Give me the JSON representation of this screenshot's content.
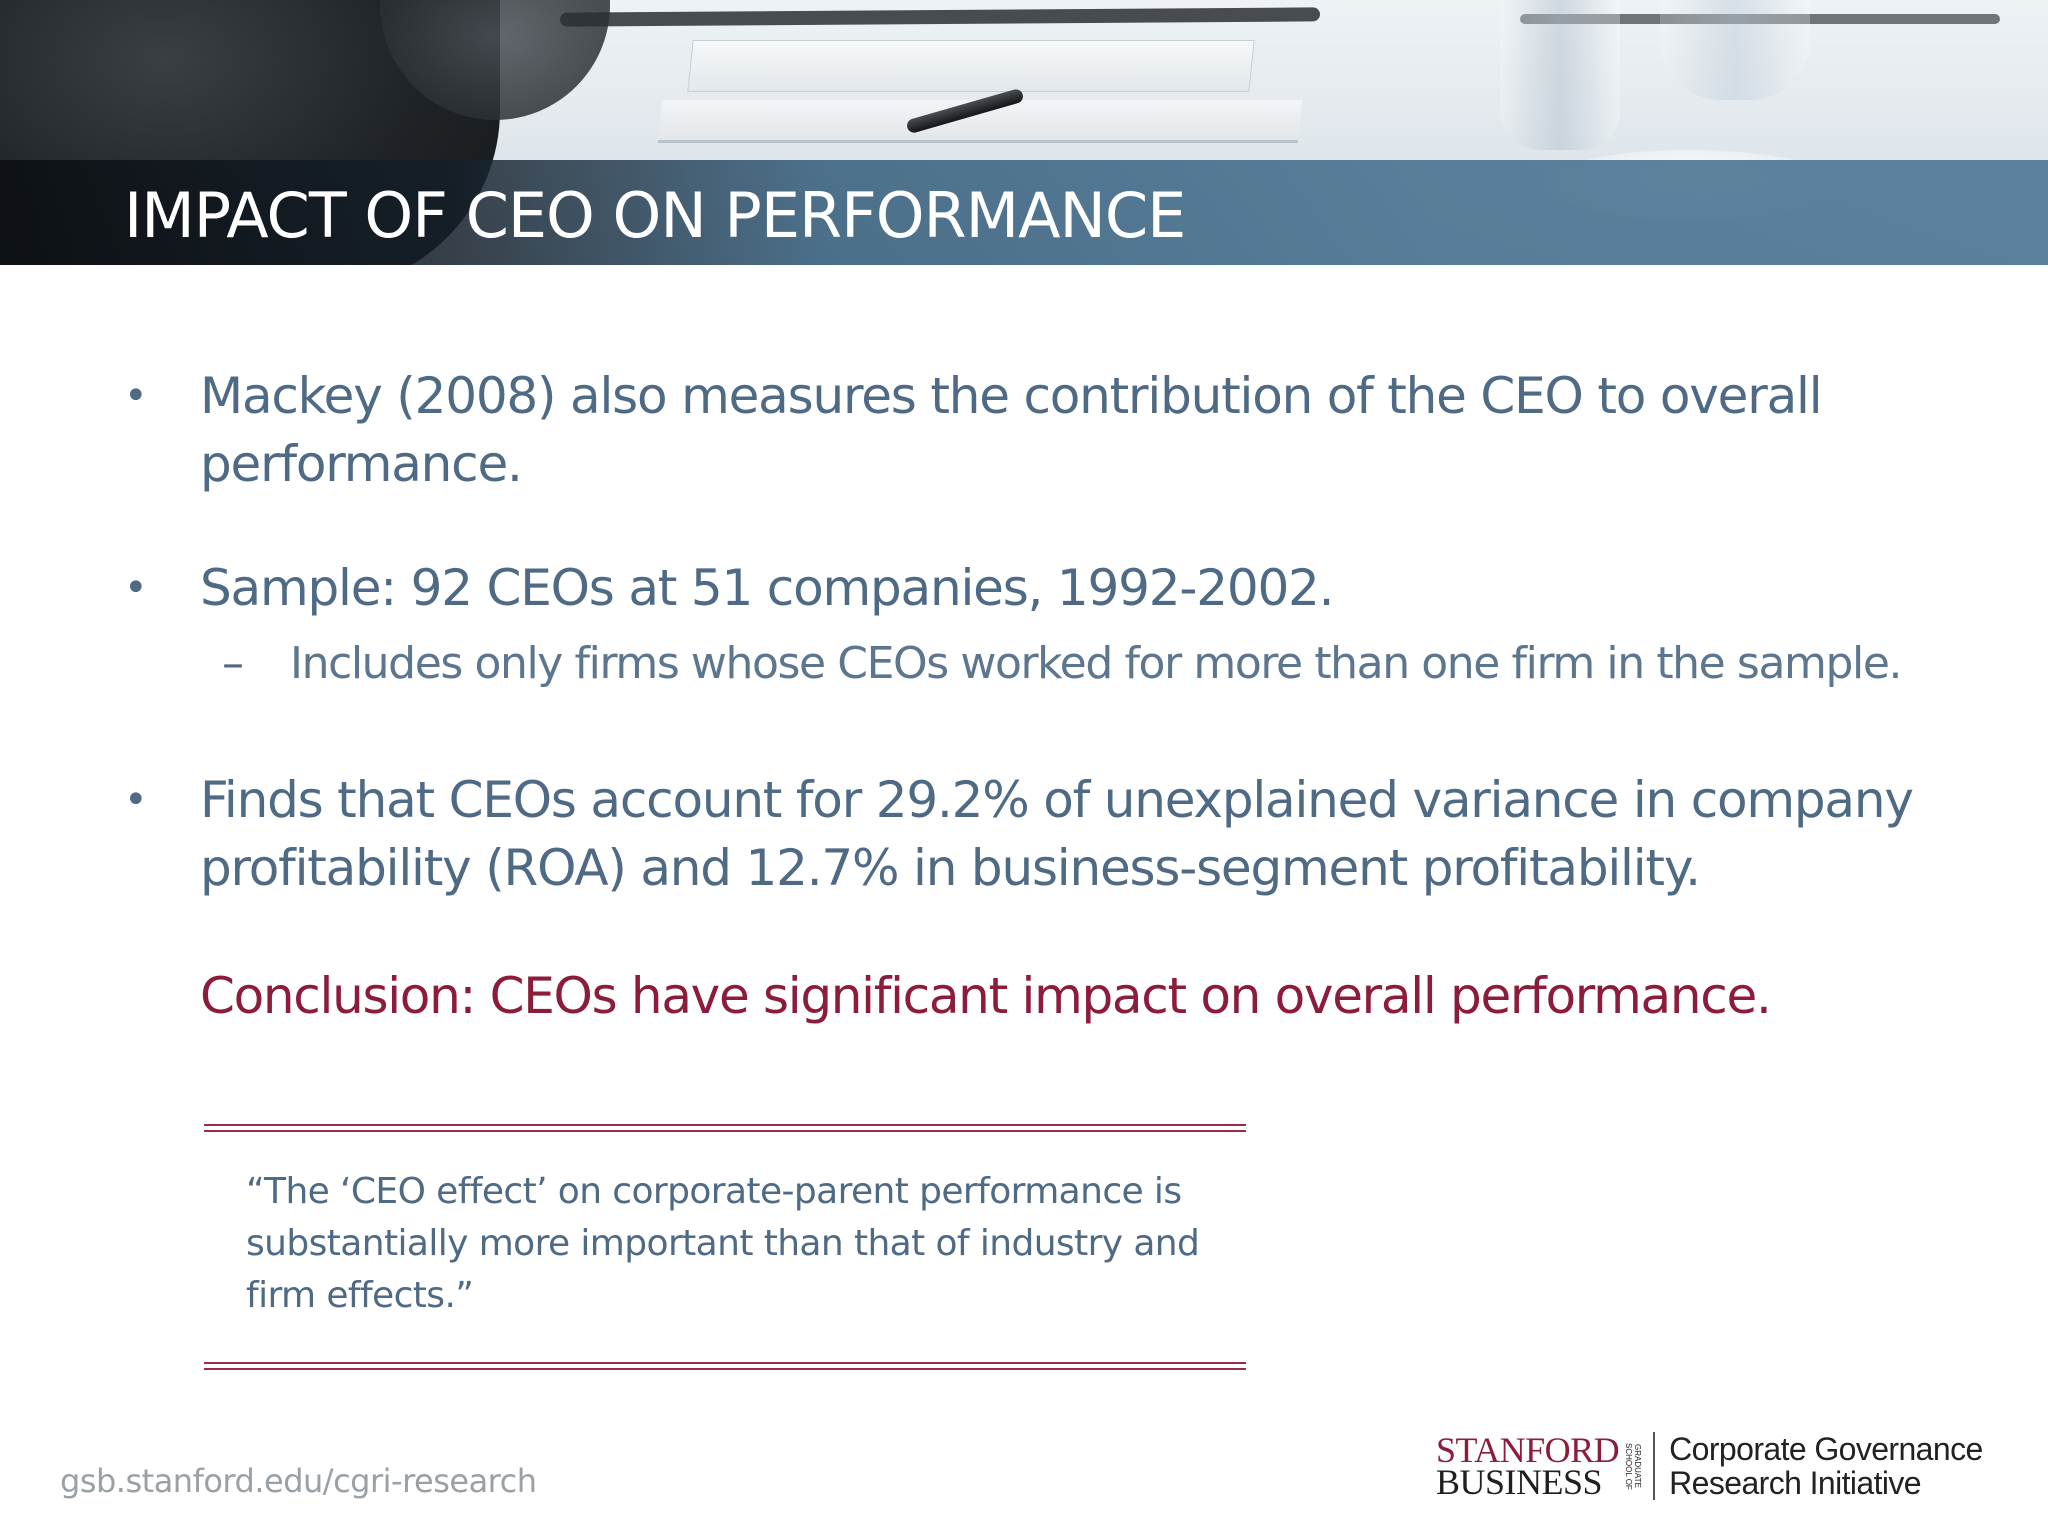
{
  "slide": {
    "title": "IMPACT OF CEO ON PERFORMANCE",
    "bullets": [
      {
        "text": "Mackey (2008) also measures the contribution of the CEO to overall performance."
      },
      {
        "text": "Sample: 92 CEOs at 51 companies, 1992-2002.",
        "sub": "Includes only firms whose CEOs worked for more than one firm in the sample."
      },
      {
        "text": "Finds that CEOs account for 29.2% of unexplained variance in company profitability (ROA) and 12.7% in business-segment profitability."
      }
    ],
    "bullet_marker": "•",
    "sub_marker": "–",
    "conclusion": "Conclusion: CEOs have significant impact on overall performance.",
    "quote": "“The ‘CEO effect’ on corporate-parent performance is substantially more important than that of industry and firm effects.”"
  },
  "footer": {
    "url": "gsb.stanford.edu/cgri-research",
    "logo": {
      "word_1": "STANFORD",
      "word_2": "BUSINESS",
      "school_line_1": "GRADUATE",
      "school_line_2": "SCHOOL OF",
      "initiative_line_1": "Corporate Governance",
      "initiative_line_2": "Research Initiative"
    }
  },
  "colors": {
    "title_band": "#466e8e",
    "body_text": "#4f6a85",
    "accent": "#8c1c3a",
    "footer_text": "#9aa1a6"
  }
}
